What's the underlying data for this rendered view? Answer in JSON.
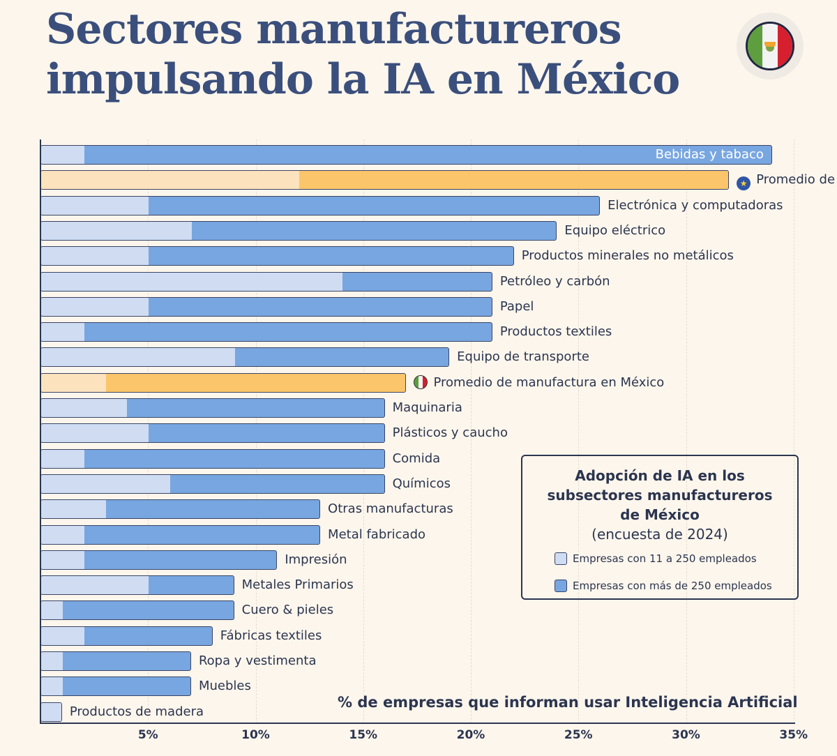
{
  "title_line1": "Sectores manufactureros",
  "title_line2": "impulsando la IA en México",
  "flag_icon": "mexico-flag-icon",
  "colors": {
    "small": "#cfdcf2",
    "large": "#78a6e0",
    "avg_small": "#fde3bd",
    "avg_large": "#fbc56b",
    "title": "#3b4f7c"
  },
  "legend": {
    "title_line1": "Adopción de IA en los",
    "title_line2": "subsectores manufactureros",
    "title_line3": "de México",
    "subtitle": "(encuesta de 2024)",
    "items": [
      "Empresas con 11 a 250 empleados",
      "Empresas con más de 250 empleados"
    ]
  },
  "chart_data": {
    "type": "bar",
    "orientation": "horizontal",
    "xlabel": "% de empresas que informan usar Inteligencia Artificial",
    "xlim": [
      0,
      35
    ],
    "xticks": [
      "5%",
      "10%",
      "15%",
      "20%",
      "25%",
      "30%",
      "35%"
    ],
    "grid": true,
    "legend_position": "right",
    "categories": [
      "Bebidas y tabaco",
      "Promedio de manufactura de la UE",
      "Electrónica y computadoras",
      "Equipo eléctrico",
      "Productos minerales no metálicos",
      "Petróleo y carbón",
      "Papel",
      "Productos textiles",
      "Equipo de transporte",
      "Promedio de manufactura en México",
      "Maquinaria",
      "Plásticos y caucho",
      "Comida",
      "Químicos",
      "Otras manufacturas",
      "Metal fabricado",
      "Impresión",
      "Metales Primarios",
      "Cuero & pieles",
      "Fábricas textiles",
      "Ropa y vestimenta",
      "Muebles",
      "Productos de madera"
    ],
    "series": [
      {
        "name": "Empresas con 11 a 250 empleados",
        "values": [
          2,
          12,
          5,
          7,
          5,
          14,
          5,
          2,
          9,
          3,
          4,
          5,
          2,
          6,
          3,
          2,
          2,
          5,
          1,
          2,
          1,
          1,
          1
        ]
      },
      {
        "name": "Empresas con más de 250 empleados",
        "values": [
          34,
          32,
          26,
          24,
          22,
          21,
          21,
          21,
          19,
          17,
          16,
          16,
          16,
          16,
          13,
          13,
          11,
          9,
          9,
          8,
          7,
          7,
          1
        ]
      }
    ],
    "highlighted": [
      "Promedio de manufactura de la UE",
      "Promedio de manufactura en México"
    ]
  }
}
